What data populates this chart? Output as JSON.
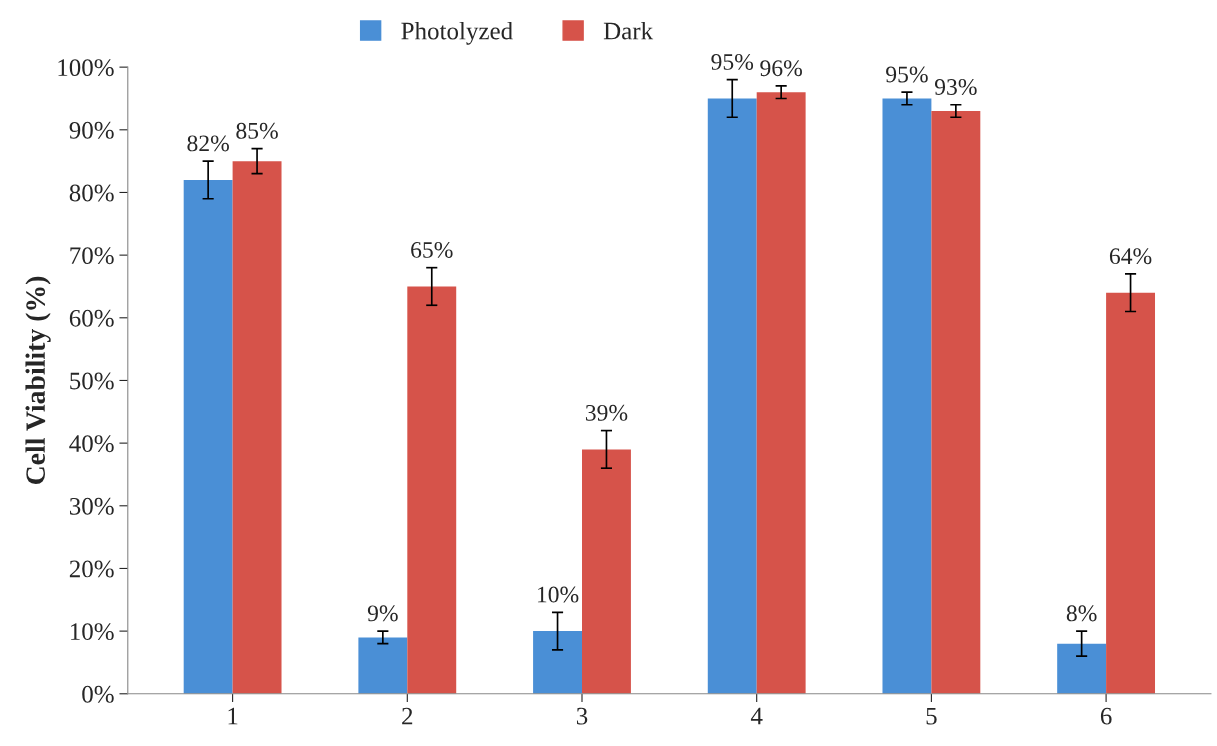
{
  "chart_data": {
    "type": "bar",
    "ylabel": "Cell Viability (%)",
    "categories": [
      "1",
      "2",
      "3",
      "4",
      "5",
      "6"
    ],
    "series": [
      {
        "name": "Photolyzed",
        "color": "#4a8fd6",
        "values": [
          82,
          9,
          10,
          95,
          95,
          8
        ],
        "errors": [
          3,
          1,
          3,
          3,
          1,
          2
        ],
        "value_labels": [
          "82%",
          "9%",
          "10%",
          "95%",
          "95%",
          "8%"
        ]
      },
      {
        "name": "Dark",
        "color": "#d6534a",
        "values": [
          85,
          65,
          39,
          96,
          93,
          64
        ],
        "errors": [
          2,
          3,
          3,
          1,
          1,
          3
        ],
        "value_labels": [
          "85%",
          "65%",
          "39%",
          "96%",
          "93%",
          "64%"
        ]
      }
    ],
    "ylim": [
      0,
      100
    ],
    "yticks": [
      {
        "value": 0,
        "label": "0%"
      },
      {
        "value": 10,
        "label": "10%"
      },
      {
        "value": 20,
        "label": "20%"
      },
      {
        "value": 30,
        "label": "30%"
      },
      {
        "value": 40,
        "label": "40%"
      },
      {
        "value": 50,
        "label": "50%"
      },
      {
        "value": 60,
        "label": "60%"
      },
      {
        "value": 70,
        "label": "70%"
      },
      {
        "value": 80,
        "label": "80%"
      },
      {
        "value": 90,
        "label": "90%"
      },
      {
        "value": 100,
        "label": "100%"
      }
    ],
    "legend": "top",
    "grid": false
  }
}
